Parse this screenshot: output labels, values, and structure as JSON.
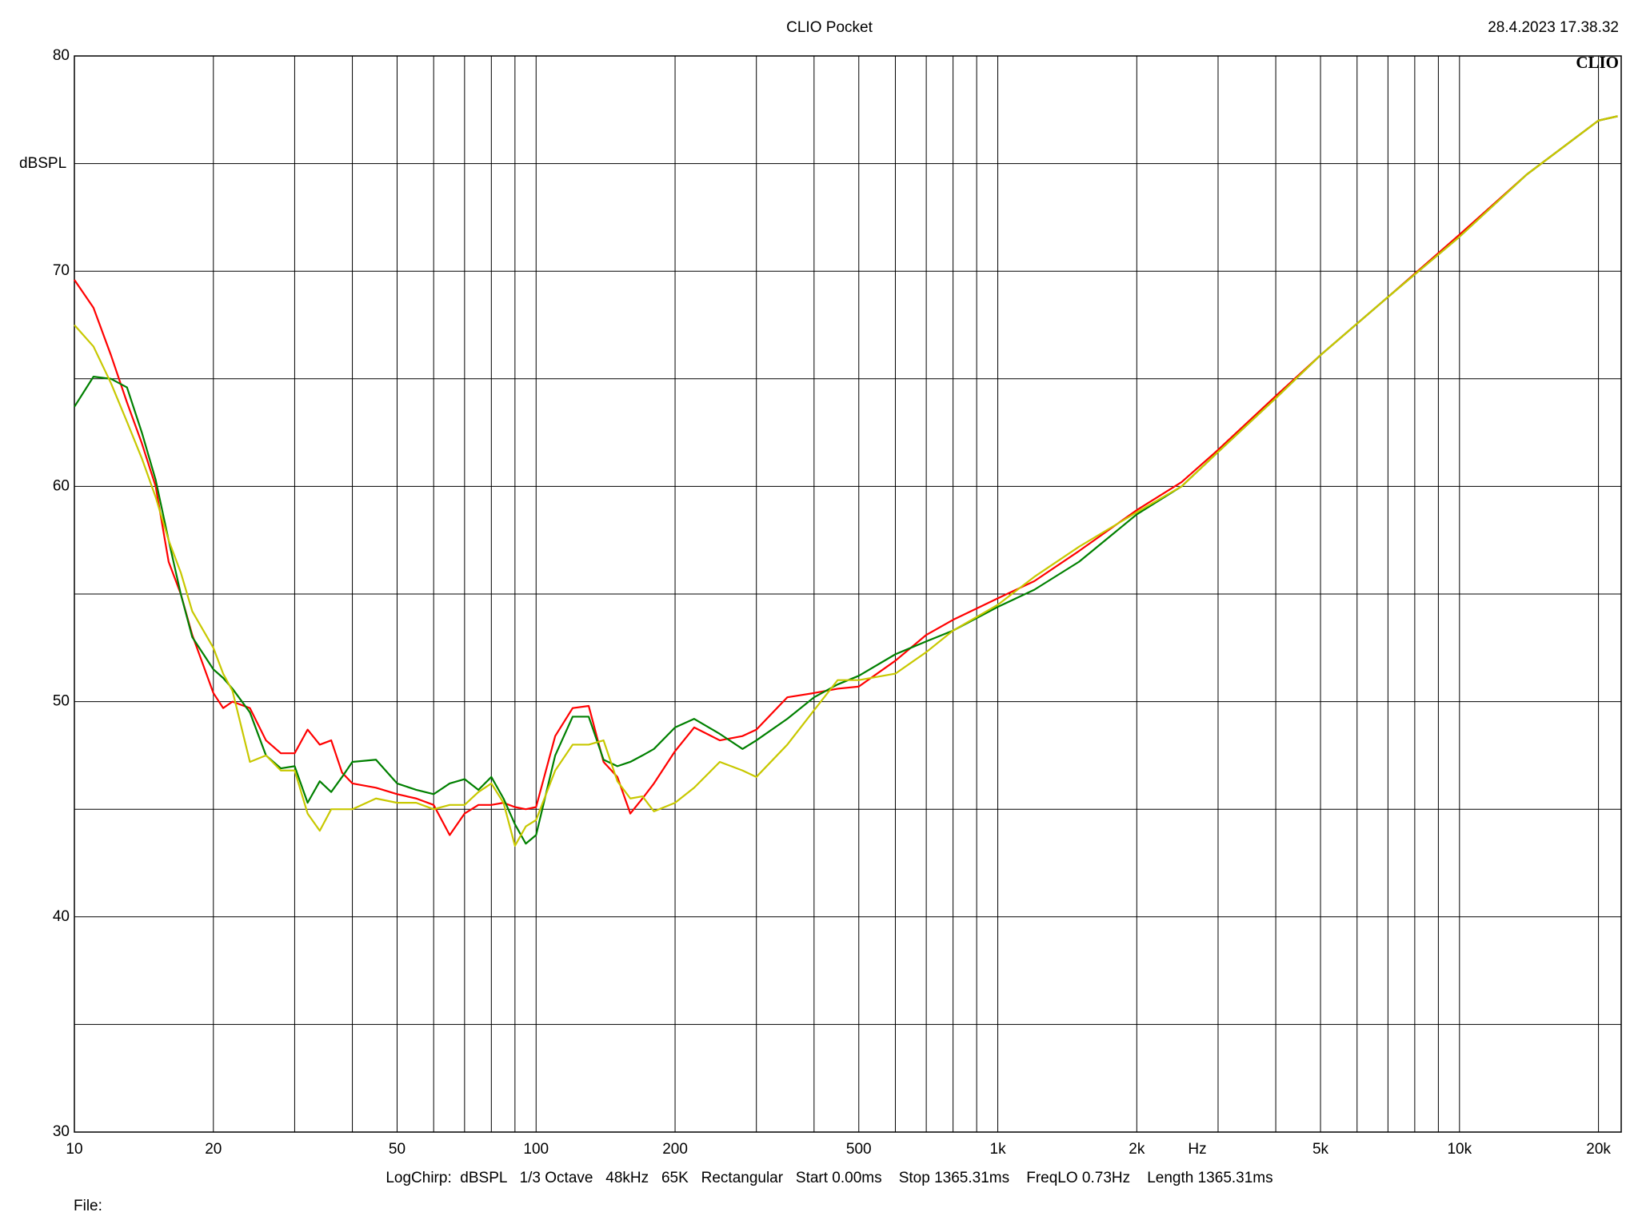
{
  "chart_data": {
    "type": "line",
    "title": "CLIO Pocket",
    "timestamp": "28.4.2023 17.38.32",
    "logo": "CLIO",
    "y_label": "dBSPL",
    "x_label": "Hz",
    "footer": "LogChirp:  dBSPL   1/3 Octave   48kHz   65K   Rectangular   Start 0.00ms    Stop 1365.31ms    FreqLO 0.73Hz    Length 1365.31ms",
    "file_label": "File:",
    "x_scale": "log",
    "grid": true,
    "xlim": [
      10,
      22400
    ],
    "ylim": [
      30,
      80
    ],
    "yticks": [
      30,
      40,
      50,
      60,
      70,
      80
    ],
    "y_minor_grid": [
      35,
      45,
      55,
      65,
      75
    ],
    "xticks": [
      10,
      20,
      50,
      100,
      200,
      500,
      {
        "value": 1000,
        "label": "1k"
      },
      {
        "value": 2000,
        "label": "2k"
      },
      {
        "value": 5000,
        "label": "5k"
      },
      {
        "value": 10000,
        "label": "10k"
      },
      {
        "value": 20000,
        "label": "20k"
      }
    ],
    "x_minor_grid": [
      30,
      40,
      60,
      70,
      80,
      90,
      300,
      400,
      600,
      700,
      800,
      900,
      3000,
      4000,
      6000,
      7000,
      8000,
      9000
    ],
    "x": [
      10,
      11,
      12,
      13,
      14,
      15,
      16,
      17,
      18,
      20,
      21,
      22,
      24,
      26,
      28,
      30,
      32,
      34,
      36,
      38,
      40,
      45,
      50,
      55,
      60,
      65,
      70,
      75,
      80,
      85,
      90,
      95,
      100,
      110,
      120,
      130,
      140,
      150,
      160,
      170,
      180,
      200,
      220,
      250,
      280,
      300,
      350,
      400,
      450,
      500,
      600,
      700,
      800,
      1000,
      1200,
      1500,
      2000,
      2500,
      3000,
      4000,
      5000,
      7000,
      10000,
      14000,
      20000,
      22000
    ],
    "series": [
      {
        "color": "#ff0000",
        "values": [
          69.6,
          68.3,
          66.1,
          63.9,
          62,
          60,
          56.5,
          55,
          53.1,
          50.4,
          49.7,
          50,
          49.7,
          48.2,
          47.6,
          47.6,
          48.7,
          48,
          48.2,
          46.7,
          46.2,
          46,
          45.7,
          45.5,
          45.2,
          43.8,
          44.8,
          45.2,
          45.2,
          45.3,
          45.1,
          45,
          45.1,
          48.4,
          49.7,
          49.8,
          47.2,
          46.5,
          44.8,
          45.5,
          46.2,
          47.7,
          48.8,
          48.2,
          48.4,
          48.7,
          50.2,
          50.4,
          50.6,
          50.7,
          51.9,
          53.1,
          53.8,
          54.8,
          55.6,
          57,
          58.9,
          60.2,
          61.7,
          64.2,
          66.1,
          68.8,
          71.7,
          74.5,
          77,
          77.2
        ]
      },
      {
        "color": "#008000",
        "values": [
          63.7,
          65.1,
          65,
          64.6,
          62.5,
          60.3,
          57.5,
          55,
          53,
          51.5,
          51.1,
          50.6,
          49.5,
          47.5,
          46.9,
          47,
          45.3,
          46.3,
          45.8,
          46.5,
          47.2,
          47.3,
          46.2,
          45.9,
          45.7,
          46.2,
          46.4,
          45.9,
          46.5,
          45.5,
          44.3,
          43.4,
          43.8,
          47.5,
          49.3,
          49.3,
          47.3,
          47,
          47.2,
          47.5,
          47.8,
          48.8,
          49.2,
          48.5,
          47.8,
          48.2,
          49.2,
          50.2,
          50.8,
          51.2,
          52.2,
          52.8,
          53.3,
          54.4,
          55.2,
          56.5,
          58.7,
          60,
          61.6,
          64.1,
          66.1,
          68.8,
          71.6,
          74.5,
          77,
          77.2
        ]
      },
      {
        "color": "#c8c800",
        "values": [
          67.5,
          66.5,
          64.8,
          63,
          61.3,
          59.5,
          57.5,
          56,
          54.2,
          52.5,
          51.3,
          50.5,
          47.2,
          47.5,
          46.8,
          46.8,
          44.8,
          44,
          45,
          45,
          45,
          45.5,
          45.3,
          45.3,
          45,
          45.2,
          45.2,
          45.8,
          46.2,
          45.3,
          43.3,
          44.2,
          44.5,
          46.8,
          48,
          48,
          48.2,
          46.3,
          45.5,
          45.6,
          44.9,
          45.3,
          46,
          47.2,
          46.8,
          46.5,
          48,
          49.6,
          51,
          51,
          51.3,
          52.3,
          53.3,
          54.5,
          55.8,
          57.2,
          58.8,
          60,
          61.6,
          64.1,
          66.1,
          68.8,
          71.6,
          74.5,
          77,
          77.2
        ]
      }
    ]
  }
}
